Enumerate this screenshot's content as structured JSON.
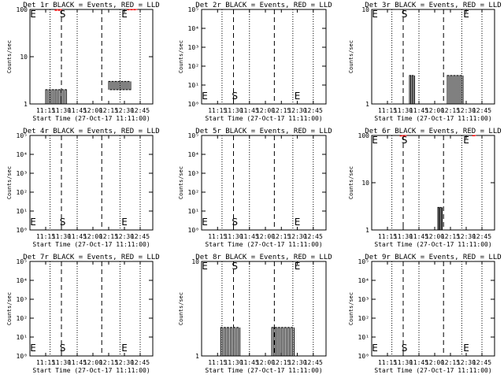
{
  "chart_data": [
    {
      "type": "line",
      "title": "Det 1r BLACK = Events, RED = LLD",
      "ylabel": "Counts/sec",
      "xlabel": "Start Time (27-Oct-17 11:11:00)",
      "xticks": [
        "11:15",
        "11:30",
        "11:45",
        "12:00",
        "12:15",
        "12:30",
        "12:45"
      ],
      "yticks": [
        "1",
        "10",
        "100"
      ],
      "ylim": [
        1,
        100
      ],
      "yscale": "log",
      "markers": [
        "E",
        "S",
        "E"
      ],
      "series": [
        {
          "color": "#000000",
          "segments": [
            {
              "x": [
                11.25,
                11.58
              ],
              "y": [
                1,
                2
              ]
            },
            {
              "x": [
                12.25,
                12.6
              ],
              "y": [
                2,
                3
              ]
            }
          ]
        },
        {
          "color": "#ff0000",
          "segments": [
            {
              "x": [
                11.4,
                11.5
              ],
              "y": [
                100,
                95
              ]
            },
            {
              "x": [
                12.55,
                12.7
              ],
              "y": [
                100,
                98
              ]
            }
          ]
        }
      ]
    },
    {
      "type": "line",
      "title": "Det 2r BLACK = Events, RED = LLD",
      "ylabel": "Counts/sec",
      "xlabel": "Start Time (27-Oct-17 11:11:00)",
      "xticks": [
        "11:15",
        "11:30",
        "11:45",
        "12:00",
        "12:15",
        "12:30",
        "12:45"
      ],
      "yticks": [
        "10⁰",
        "10¹",
        "10²",
        "10³",
        "10⁴",
        "10⁵"
      ],
      "ylim": [
        1,
        100000
      ],
      "yscale": "log",
      "markers": [
        "E",
        "S",
        "E"
      ],
      "series": []
    },
    {
      "type": "line",
      "title": "Det 3r BLACK = Events, RED = LLD",
      "ylabel": "Counts/sec",
      "xlabel": "Start Time (27-Oct-17 11:11:00)",
      "xticks": [
        "11:15",
        "11:30",
        "11:45",
        "12:00",
        "12:15",
        "12:30",
        "12:45"
      ],
      "yticks": [
        "1",
        "10"
      ],
      "ylim": [
        1,
        10
      ],
      "yscale": "log",
      "markers": [
        "E",
        "S",
        "E"
      ],
      "series": [
        {
          "color": "#000000",
          "segments": [
            {
              "x": [
                11.6,
                11.68
              ],
              "y": [
                1,
                2
              ]
            },
            {
              "x": [
                12.2,
                12.45
              ],
              "y": [
                1,
                2
              ]
            }
          ]
        }
      ]
    },
    {
      "type": "line",
      "title": "Det 4r BLACK = Events, RED = LLD",
      "ylabel": "Counts/sec",
      "xlabel": "Start Time (27-Oct-17 11:11:00)",
      "xticks": [
        "11:15",
        "11:30",
        "11:45",
        "12:00",
        "12:15",
        "12:30",
        "12:45"
      ],
      "yticks": [
        "10⁰",
        "10¹",
        "10²",
        "10³",
        "10⁴",
        "10⁵"
      ],
      "ylim": [
        1,
        100000
      ],
      "yscale": "log",
      "markers": [
        "E",
        "S",
        "E"
      ],
      "series": []
    },
    {
      "type": "line",
      "title": "Det 5r BLACK = Events, RED = LLD",
      "ylabel": "Counts/sec",
      "xlabel": "Start Time (27-Oct-17 11:11:00)",
      "xticks": [
        "11:15",
        "11:30",
        "11:45",
        "12:00",
        "12:15",
        "12:30",
        "12:45"
      ],
      "yticks": [
        "10⁰",
        "10¹",
        "10²",
        "10³",
        "10⁴",
        "10⁵"
      ],
      "ylim": [
        1,
        100000
      ],
      "yscale": "log",
      "markers": [
        "E",
        "S",
        "E"
      ],
      "series": []
    },
    {
      "type": "line",
      "title": "Det 6r BLACK = Events, RED = LLD",
      "ylabel": "Counts/sec",
      "xlabel": "Start Time (27-Oct-17 11:11:00)",
      "xticks": [
        "11:15",
        "11:30",
        "11:45",
        "12:00",
        "12:15",
        "12:30",
        "12:45"
      ],
      "yticks": [
        "1",
        "10",
        "100"
      ],
      "ylim": [
        1,
        100
      ],
      "yscale": "log",
      "markers": [
        "E",
        "S",
        "E"
      ],
      "series": [
        {
          "color": "#000000",
          "segments": [
            {
              "x": [
                12.05,
                12.12
              ],
              "y": [
                1,
                3
              ]
            }
          ]
        },
        {
          "color": "#ff0000",
          "segments": [
            {
              "x": [
                11.45,
                11.55
              ],
              "y": [
                100,
                97
              ]
            },
            {
              "x": [
                12.6,
                12.65
              ],
              "y": [
                100,
                98
              ]
            }
          ]
        }
      ]
    },
    {
      "type": "line",
      "title": "Det 7r BLACK = Events, RED = LLD",
      "ylabel": "Counts/sec",
      "xlabel": "Start Time (27-Oct-17 11:11:00)",
      "xticks": [
        "11:15",
        "11:30",
        "11:45",
        "12:00",
        "12:15",
        "12:30",
        "12:45"
      ],
      "yticks": [
        "10⁰",
        "10¹",
        "10²",
        "10³",
        "10⁴",
        "10⁵"
      ],
      "ylim": [
        1,
        100000
      ],
      "yscale": "log",
      "markers": [
        "E",
        "S",
        "E"
      ],
      "series": []
    },
    {
      "type": "line",
      "title": "Det 8r BLACK = Events, RED = LLD",
      "ylabel": "Counts/sec",
      "xlabel": "Start Time (27-Oct-17 11:11:00)",
      "xticks": [
        "11:15",
        "11:30",
        "11:45",
        "12:00",
        "12:15",
        "12:30",
        "12:45"
      ],
      "yticks": [
        "1",
        "10"
      ],
      "ylim": [
        1,
        10
      ],
      "yscale": "log",
      "markers": [
        "E",
        "S",
        "E"
      ],
      "series": [
        {
          "color": "#000000",
          "segments": [
            {
              "x": [
                11.3,
                11.6
              ],
              "y": [
                1,
                2
              ]
            },
            {
              "x": [
                12.1,
                12.45
              ],
              "y": [
                1,
                2
              ]
            }
          ]
        }
      ]
    },
    {
      "type": "line",
      "title": "Det 9r BLACK = Events, RED = LLD",
      "ylabel": "Counts/sec",
      "xlabel": "Start Time (27-Oct-17 11:11:00)",
      "xticks": [
        "11:15",
        "11:30",
        "11:45",
        "12:00",
        "12:15",
        "12:30",
        "12:45"
      ],
      "yticks": [
        "10⁰",
        "10¹",
        "10²",
        "10³",
        "10⁴",
        "10⁵"
      ],
      "ylim": [
        1,
        100000
      ],
      "yscale": "log",
      "markers": [
        "E",
        "S",
        "E"
      ],
      "series": []
    }
  ]
}
